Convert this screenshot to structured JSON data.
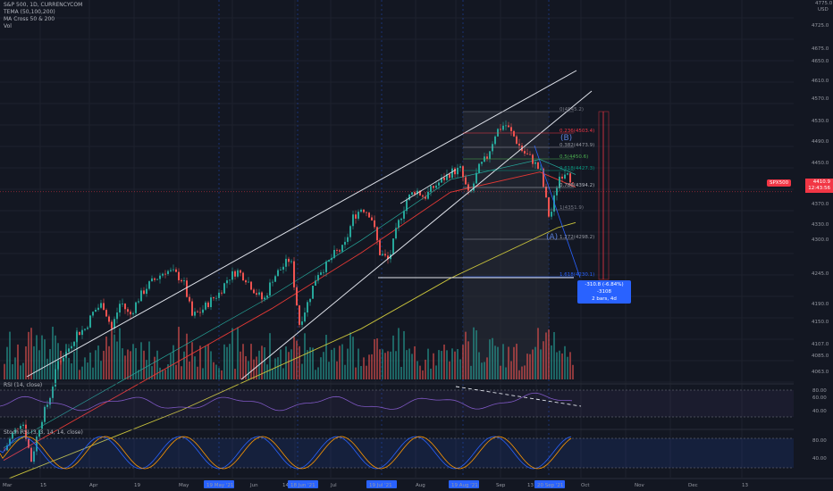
{
  "header": {
    "symbol": "S&P 500, 1D, CURRENCYCOM",
    "indicators": [
      "TEMA (50,100,200)",
      "MA Cross 50 & 200",
      "Vol"
    ]
  },
  "panes": {
    "rsi_label": "RSI (14, close)",
    "stoch_label": "Stoch RSI (3, 3, 14, 14, close)"
  },
  "price_axis": [
    "4725.0",
    "4675.0",
    "4650.0",
    "4610.0",
    "4570.0",
    "4530.0",
    "4490.0",
    "4450.0",
    "4370.0",
    "4330.0",
    "4300.0",
    "4245.0",
    "4190.0",
    "4150.0",
    "4107.0",
    "4085.0",
    "4063.0"
  ],
  "price_axis_top": [
    "4775.0",
    "USD"
  ],
  "rsi_axis": [
    "80.00",
    "60.00",
    "40.00"
  ],
  "stoch_axis": [
    "80.00",
    "40.00"
  ],
  "time_axis": [
    "Mar",
    "15",
    "Apr",
    "19",
    "May",
    "Jun",
    "14",
    "Jul",
    "Aug",
    "Sep",
    "13",
    "Oct",
    "Nov",
    "Dec",
    "13"
  ],
  "time_highlights": [
    "19 May '21",
    "18 Jun '21",
    "19 Jul '21",
    "19 Aug '21",
    "20 Sep '21"
  ],
  "current_price": {
    "value": "4410.9",
    "countdown": "12:43:56",
    "symbol_tag": "SPX500"
  },
  "fib_levels": [
    {
      "label": "0(4545.2)",
      "color": "#787b86"
    },
    {
      "label": "0.236(4503.4)",
      "color": "#f23645"
    },
    {
      "label": "0.382(4473.9)",
      "color": "#9598a1"
    },
    {
      "label": "0.5(4450.6)",
      "color": "#4caf50"
    },
    {
      "label": "0.618(4427.3)",
      "color": "#089981"
    },
    {
      "label": "0.786(4394.2)",
      "color": "#b2b5be"
    },
    {
      "label": "1(4351.9)",
      "color": "#787b86"
    },
    {
      "label": "1.272(4298.2)",
      "color": "#9598a1"
    },
    {
      "label": "1.618(4230.1)",
      "color": "#2962ff"
    }
  ],
  "wave_labels": [
    "(B)",
    "(A)"
  ],
  "measure": {
    "line1": "-310.8 (-6.84%) -3108",
    "line2": "2 bars, 4d"
  },
  "colors": {
    "bg": "#131722",
    "up": "#26a69a",
    "down": "#ef5350",
    "accent": "#2962ff"
  },
  "chart_data": {
    "type": "candlestick",
    "title": "S&P 500, 1D, CURRENCYCOM",
    "ylim": [
      4040,
      4790
    ],
    "trend_points": [
      [
        0,
        3900
      ],
      [
        10,
        3935
      ],
      [
        20,
        3960
      ],
      [
        30,
        3880
      ],
      [
        40,
        3955
      ],
      [
        50,
        4000
      ],
      [
        60,
        4075
      ],
      [
        70,
        4095
      ],
      [
        80,
        4130
      ],
      [
        90,
        4140
      ],
      [
        100,
        4175
      ],
      [
        110,
        4190
      ],
      [
        120,
        4140
      ],
      [
        130,
        4195
      ],
      [
        140,
        4165
      ],
      [
        150,
        4200
      ],
      [
        160,
        4225
      ],
      [
        170,
        4240
      ],
      [
        180,
        4255
      ],
      [
        190,
        4250
      ],
      [
        200,
        4235
      ],
      [
        210,
        4165
      ],
      [
        220,
        4175
      ],
      [
        230,
        4195
      ],
      [
        240,
        4210
      ],
      [
        250,
        4240
      ],
      [
        260,
        4255
      ],
      [
        270,
        4240
      ],
      [
        280,
        4215
      ],
      [
        290,
        4195
      ],
      [
        300,
        4240
      ],
      [
        310,
        4260
      ],
      [
        320,
        4280
      ],
      [
        330,
        4150
      ],
      [
        340,
        4195
      ],
      [
        350,
        4250
      ],
      [
        360,
        4265
      ],
      [
        370,
        4290
      ],
      [
        380,
        4300
      ],
      [
        390,
        4360
      ],
      [
        400,
        4380
      ],
      [
        410,
        4365
      ],
      [
        420,
        4290
      ],
      [
        430,
        4275
      ],
      [
        440,
        4345
      ],
      [
        450,
        4395
      ],
      [
        460,
        4415
      ],
      [
        470,
        4400
      ],
      [
        480,
        4420
      ],
      [
        490,
        4435
      ],
      [
        500,
        4450
      ],
      [
        510,
        4455
      ],
      [
        520,
        4400
      ],
      [
        530,
        4455
      ],
      [
        540,
        4480
      ],
      [
        550,
        4530
      ],
      [
        560,
        4545
      ],
      [
        570,
        4520
      ],
      [
        580,
        4490
      ],
      [
        590,
        4475
      ],
      [
        600,
        4450
      ],
      [
        610,
        4355
      ],
      [
        620,
        4440
      ],
      [
        630,
        4455
      ],
      [
        638,
        4410
      ]
    ],
    "ma_slow_points": [
      [
        0,
        3840
      ],
      [
        200,
        3980
      ],
      [
        400,
        4140
      ],
      [
        500,
        4240
      ],
      [
        620,
        4340
      ],
      [
        640,
        4350
      ]
    ],
    "ma_mid_points": [
      [
        0,
        3880
      ],
      [
        200,
        4080
      ],
      [
        300,
        4180
      ],
      [
        400,
        4290
      ],
      [
        500,
        4410
      ],
      [
        600,
        4450
      ],
      [
        640,
        4420
      ]
    ],
    "annotations": [
      "0(4545.2)",
      "0.236(4503.4)",
      "0.382(4473.9)",
      "0.5(4450.6)",
      "0.618(4427.3)",
      "0.786(4394.2)",
      "1(4351.9)",
      "1.272(4298.2)",
      "1.618(4230.1)",
      "(A)",
      "(B)",
      "-310.8 (-6.84%) -3108",
      "2 bars, 4d"
    ],
    "legend": [
      "TEMA (50,100,200)",
      "MA Cross 50 & 200",
      "Vol"
    ],
    "grid": true
  }
}
